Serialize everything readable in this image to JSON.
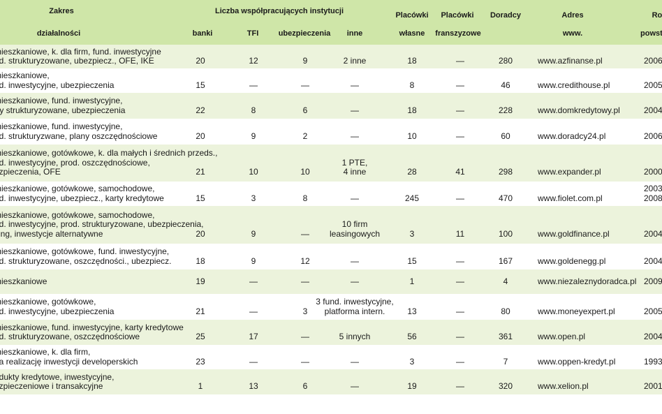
{
  "headers": {
    "zakres": "Zakres",
    "dzialalnosci": "działalności",
    "liczba": "Liczba współpracujących instytucji",
    "banki": "banki",
    "tfi": "TFI",
    "ubezpieczenia": "ubezpieczenia",
    "inne": "inne",
    "placowki_wlasne_1": "Placówki",
    "placowki_wlasne_2": "własne",
    "placowki_fr_1": "Placówki",
    "placowki_fr_2": "franszyzowe",
    "doradcy": "Doradcy",
    "adres_1": "Adres",
    "adres_2": "www.",
    "rok_1": "Rok",
    "rok_2": "powsta"
  },
  "rows": [
    {
      "zakres": [
        "mieszkaniowe, k. dla firm, fund. inwestycyjne",
        "od. strukturyzowane, ubezpiecz., OFE, IKE"
      ],
      "banki": "20",
      "tfi": "12",
      "ubezpieczenia": "9",
      "inne": [
        "2 inne"
      ],
      "wlasne": "18",
      "franszyzowe": "—",
      "doradcy": "280",
      "adres": "www.azfinanse.pl",
      "rok": [
        "2006"
      ]
    },
    {
      "zakres": [
        "mieszkaniowe,",
        "nd. inwestycyjne, ubezpieczenia"
      ],
      "banki": "15",
      "tfi": "—",
      "ubezpieczenia": "—",
      "inne": [
        "—"
      ],
      "wlasne": "8",
      "franszyzowe": "—",
      "doradcy": "46",
      "adres": "www.credithouse.pl",
      "rok": [
        "2005"
      ]
    },
    {
      "zakres": [
        "mieszkaniowe, fund. inwestycyjne,",
        "rty strukturyzowane, ubezpieczenia"
      ],
      "banki": "22",
      "tfi": "8",
      "ubezpieczenia": "6",
      "inne": [
        "—"
      ],
      "wlasne": "18",
      "franszyzowe": "—",
      "doradcy": "228",
      "adres": "www.domkredytowy.pl",
      "rok": [
        "2004"
      ]
    },
    {
      "zakres": [
        "mieszkaniowe, fund. inwestycyjne,",
        "od. strukturyzwane, plany oszczędnościowe"
      ],
      "banki": "20",
      "tfi": "9",
      "ubezpieczenia": "2",
      "inne": [
        "—"
      ],
      "wlasne": "10",
      "franszyzowe": "—",
      "doradcy": "60",
      "adres": "www.doradcy24.pl",
      "rok": [
        "2006"
      ]
    },
    {
      "zakres": [
        "mieszkaniowe, gotówkowe, k. dla małych i średnich przeds.,",
        "nd. inwestycyjne, prod. oszczędnościowe,",
        "ezpieczenia, OFE"
      ],
      "banki": "21",
      "tfi": "10",
      "ubezpieczenia": "10",
      "inne": [
        "1 PTE,",
        "4 inne"
      ],
      "wlasne": "28",
      "franszyzowe": "41",
      "doradcy": "298",
      "adres": "www.expander.pl",
      "rok": [
        "2000"
      ]
    },
    {
      "zakres": [
        "mieszkaniowe, gotówkowe, samochodowe,",
        "nd. inwestycyjne, ubezpiecz., karty kredytowe"
      ],
      "banki": "15",
      "tfi": "3",
      "ubezpieczenia": "8",
      "inne": [
        "—"
      ],
      "wlasne": "245",
      "franszyzowe": "—",
      "doradcy": "470",
      "adres": "www.fiolet.com.pl",
      "rok": [
        "2003/",
        "2008"
      ]
    },
    {
      "zakres": [
        "mieszkaniowe, gotówkowe, samochodowe,",
        "nd. inwestycyjne, prod. strukturyzowane, ubezpieczenia,",
        "sing, inwestycje alternatywne"
      ],
      "banki": "20",
      "tfi": "9",
      "ubezpieczenia": "—",
      "inne": [
        "10 firm",
        "leasingowych"
      ],
      "wlasne": "3",
      "franszyzowe": "11",
      "doradcy": "100",
      "adres": "www.goldfinance.pl",
      "rok": [
        "2004"
      ]
    },
    {
      "zakres": [
        "mieszkaniowe, gotówkowe, fund. inwestycyjne,",
        "od. strukturyzowane, oszczędności., ubezpiecz."
      ],
      "banki": "18",
      "tfi": "9",
      "ubezpieczenia": "12",
      "inne": [
        "—"
      ],
      "wlasne": "15",
      "franszyzowe": "—",
      "doradcy": "167",
      "adres": "www.goldenegg.pl",
      "rok": [
        "2004"
      ]
    },
    {
      "zakres": [
        "mieszkaniowe"
      ],
      "banki": "19",
      "tfi": "—",
      "ubezpieczenia": "—",
      "inne": [
        "—"
      ],
      "wlasne": "1",
      "franszyzowe": "—",
      "doradcy": "4",
      "adres": "www.niezaleznydoradca.pl",
      "rok": [
        "2009"
      ]
    },
    {
      "zakres": [
        "mieszkaniowe, gotówkowe,",
        "nd. inwestycyjne, ubezpieczenia"
      ],
      "banki": "21",
      "tfi": "—",
      "ubezpieczenia": "3",
      "inne": [
        "3 fund. inwestycyjne,",
        "platforma intern."
      ],
      "wlasne": "13",
      "franszyzowe": "—",
      "doradcy": "80",
      "adres": "www.moneyexpert.pl",
      "rok": [
        "2005"
      ]
    },
    {
      "zakres": [
        "mieszkaniowe, fund. inwestycyjne, karty kredytowe",
        "od. strukturyzowane, oszczędnościowe"
      ],
      "banki": "25",
      "tfi": "17",
      "ubezpieczenia": "—",
      "inne": [
        "5 innych"
      ],
      "wlasne": "56",
      "franszyzowe": "—",
      "doradcy": "361",
      "adres": "www.open.pl",
      "rok": [
        "2004"
      ]
    },
    {
      "zakres": [
        "mieszkaniowe, k. dla firm,",
        "na realizację inwestycji developerskich"
      ],
      "banki": "23",
      "tfi": "—",
      "ubezpieczenia": "—",
      "inne": [
        "—"
      ],
      "wlasne": "3",
      "franszyzowe": "—",
      "doradcy": "7",
      "adres": "www.oppen-kredyt.pl",
      "rok": [
        "1993"
      ]
    },
    {
      "zakres": [
        "odukty kredytowe, inwestycyjne,",
        "ezpieczeniowe i transakcyjne"
      ],
      "banki": "1",
      "tfi": "13",
      "ubezpieczenia": "6",
      "inne": [
        "—"
      ],
      "wlasne": "19",
      "franszyzowe": "—",
      "doradcy": "320",
      "adres": "www.xelion.pl",
      "rok": [
        "2001"
      ]
    }
  ]
}
